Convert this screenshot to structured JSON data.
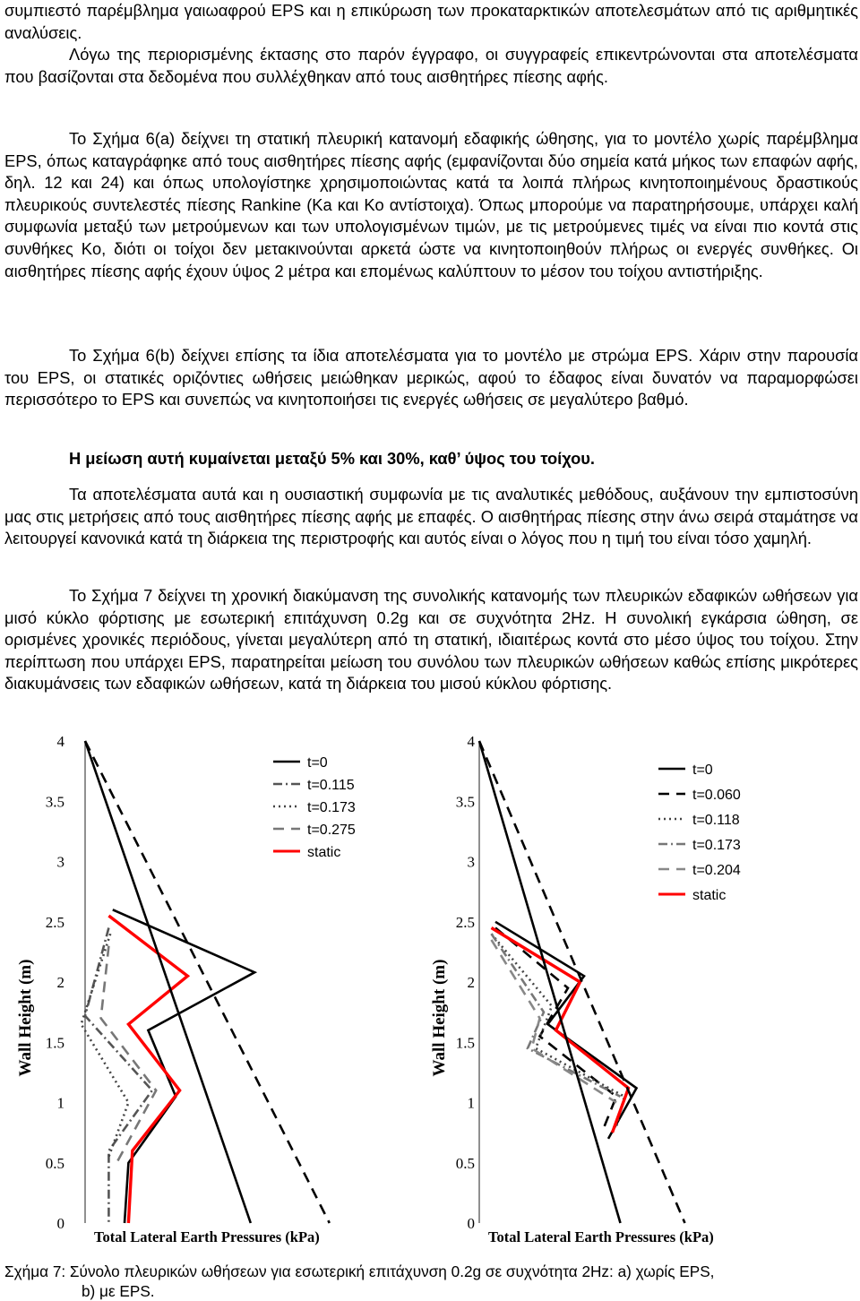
{
  "paragraphs": {
    "p0": "συμπιεστό παρέμβλημα γαιωαφρού EPS και η επικύρωση των προκαταρκτικών αποτελεσμάτων από τις αριθμητικές αναλύσεις.",
    "p1": "Λόγω της περιορισμένης έκτασης στο παρόν έγγραφο, οι συγγραφείς επικεντρώνονται στα αποτελέσματα που βασίζονται στα δεδομένα που συλλέχθηκαν από τους αισθητήρες πίεσης αφής.",
    "p2": "Το Σχήμα 6(a) δείχνει τη στατική πλευρική κατανομή εδαφικής ώθησης, για το μοντέλο χωρίς παρέμβλημα EPS, όπως καταγράφηκε από τους αισθητήρες πίεσης αφής (εμφανίζονται δύο σημεία κατά μήκος των επαφών αφής, δηλ. 12 και 24) και όπως υπολογίστηκε χρησιμοποιώντας κατά τα λοιπά πλήρως κινητοποιημένους δραστικούς πλευρικούς συντελεστές πίεσης Rankine (Ka και Ko αντίστοιχα). Όπως μπορούμε να παρατηρήσουμε, υπάρχει καλή συμφωνία μεταξύ των μετρούμενων και των υπολογισμένων τιμών, με τις μετρούμενες τιμές να είναι πιο κοντά στις συνθήκες Ko, διότι οι τοίχοι δεν μετακινούνται αρκετά ώστε να κινητοποιηθούν πλήρως οι ενεργές συνθήκες. Οι αισθητήρες πίεσης αφής έχουν ύψος 2 μέτρα και επομένως καλύπτουν το μέσον του τοίχου αντιστήριξης.",
    "p3": "Το Σχήμα 6(b) δείχνει επίσης τα ίδια αποτελέσματα για το μοντέλο με στρώμα EPS. Χάριν στην παρουσία του EPS, οι στατικές οριζόντιες ωθήσεις μειώθηκαν μερικώς, αφού το έδαφος είναι δυνατόν να παραμορφώσει περισσότερο το EPS και συνεπώς να κινητοποιήσει τις ενεργές ωθήσεις σε μεγαλύτερο βαθμό.",
    "p4": "Η μείωση αυτή κυμαίνεται μεταξύ 5% και 30%, καθ’ ύψος του τοίχου.",
    "p5": "Τα αποτελέσματα αυτά και η ουσιαστική συμφωνία με τις αναλυτικές μεθόδους, αυξάνουν την εμπιστοσύνη μας στις μετρήσεις από τους αισθητήρες πίεσης αφής με επαφές. Ο αισθητήρας πίεσης στην άνω σειρά σταμάτησε να λειτουργεί κανονικά κατά τη διάρκεια της περιστροφής και αυτός είναι ο λόγος που η τιμή του είναι τόσο χαμηλή.",
    "p6": "Το Σχήμα 7 δείχνει τη χρονική διακύμανση της συνολικής κατανομής των πλευρικών εδαφικών ωθήσεων για μισό κύκλο φόρτισης με εσωτερική επιτάχυνση 0.2g και σε συχνότητα 2Hz. Η συνολική εγκάρσια ώθηση, σε ορισμένες χρονικές περιόδους, γίνεται μεγαλύτερη από τη στατική, ιδιαιτέρως κοντά στο μέσο ύψος του τοίχου. Στην περίπτωση που υπάρχει EPS, παρατηρείται μείωση του συνόλου των πλευρικών ωθήσεων καθώς επίσης μικρότερες διακυμάνσεις των εδαφικών ωθήσεων, κατά τη διάρκεια του μισού κύκλου φόρτισης."
  },
  "chart_data": [
    {
      "type": "line",
      "panel": "a",
      "ylabel": "Wall Height (m)",
      "xlabel": "Total Lateral Earth Pressures (kPa)",
      "ylim": [
        0,
        4
      ],
      "yticks": [
        "0",
        "0.5",
        "1",
        "1.5",
        "2",
        "2.5",
        "3",
        "3.5",
        "4"
      ],
      "legend_position": "top-right",
      "series": [
        {
          "name": "t=0",
          "color": "#000000",
          "style": "solid",
          "points": [
            [
              0.35,
              2.6
            ],
            [
              2.15,
              2.08
            ],
            [
              0.8,
              1.6
            ],
            [
              1.15,
              1.05
            ],
            [
              0.55,
              0.5
            ],
            [
              0.5,
              0.0
            ]
          ]
        },
        {
          "name": "t=0.115",
          "color": "#555555",
          "style": "dash-dot",
          "points": [
            [
              0.3,
              2.45
            ],
            [
              0.0,
              1.72
            ],
            [
              0.85,
              1.1
            ],
            [
              0.3,
              0.6
            ],
            [
              0.3,
              0.0
            ]
          ]
        },
        {
          "name": "t=0.173",
          "color": "#444444",
          "style": "dotted",
          "points": [
            [
              0.32,
              2.4
            ],
            [
              -0.05,
              1.65
            ],
            [
              0.55,
              1.0
            ],
            [
              0.3,
              0.55
            ]
          ]
        },
        {
          "name": "t=0.275",
          "color": "#777777",
          "style": "dash",
          "points": [
            [
              0.3,
              2.3
            ],
            [
              0.2,
              1.7
            ],
            [
              0.9,
              1.1
            ],
            [
              0.4,
              0.5
            ]
          ]
        },
        {
          "name": "static",
          "color": "#ff0000",
          "style": "solid",
          "points": [
            [
              0.3,
              2.55
            ],
            [
              1.3,
              2.05
            ],
            [
              0.55,
              1.65
            ],
            [
              1.2,
              1.1
            ],
            [
              0.6,
              0.6
            ],
            [
              0.55,
              0.0
            ]
          ]
        },
        {
          "name": "",
          "color": "#000000",
          "style": "solid",
          "points": [
            [
              0.0,
              4.0
            ],
            [
              2.1,
              0.0
            ]
          ]
        },
        {
          "name": "",
          "color": "#000000",
          "style": "dash",
          "points": [
            [
              0.0,
              4.0
            ],
            [
              3.1,
              0.0
            ]
          ]
        }
      ]
    },
    {
      "type": "line",
      "panel": "b",
      "ylabel": "Wall Height (m)",
      "xlabel": "Total Lateral Earth Pressures (kPa)",
      "ylim": [
        0,
        4
      ],
      "yticks": [
        "0",
        "0.5",
        "1",
        "1.5",
        "2",
        "2.5",
        "3",
        "3.5",
        "4"
      ],
      "legend_position": "top-right",
      "series": [
        {
          "name": "t=0",
          "color": "#000000",
          "style": "solid",
          "points": [
            [
              0.2,
              2.5
            ],
            [
              1.3,
              2.05
            ],
            [
              0.85,
              1.65
            ],
            [
              1.95,
              1.12
            ],
            [
              1.6,
              0.7
            ]
          ]
        },
        {
          "name": "t=0.060",
          "color": "#000000",
          "style": "dash",
          "points": [
            [
              0.2,
              2.45
            ],
            [
              1.1,
              1.95
            ],
            [
              0.75,
              1.55
            ],
            [
              1.7,
              1.05
            ],
            [
              1.55,
              0.8
            ]
          ]
        },
        {
          "name": "t=0.118",
          "color": "#444444",
          "style": "dotted",
          "points": [
            [
              0.15,
              2.4
            ],
            [
              0.9,
              1.8
            ],
            [
              0.7,
              1.45
            ],
            [
              1.8,
              1.05
            ],
            [
              1.7,
              0.8
            ]
          ]
        },
        {
          "name": "t=0.173",
          "color": "#777777",
          "style": "dash-dot",
          "points": [
            [
              0.15,
              2.4
            ],
            [
              0.8,
              1.75
            ],
            [
              0.6,
              1.45
            ],
            [
              1.75,
              1.05
            ]
          ]
        },
        {
          "name": "t=0.204",
          "color": "#888888",
          "style": "dash",
          "points": [
            [
              0.15,
              2.35
            ],
            [
              0.75,
              1.7
            ],
            [
              0.65,
              1.45
            ],
            [
              1.7,
              1.0
            ]
          ]
        },
        {
          "name": "static",
          "color": "#ff0000",
          "style": "solid",
          "points": [
            [
              0.15,
              2.45
            ],
            [
              1.25,
              2.0
            ],
            [
              0.95,
              1.6
            ],
            [
              1.85,
              1.12
            ],
            [
              1.65,
              0.75
            ]
          ]
        },
        {
          "name": "",
          "color": "#000000",
          "style": "solid",
          "points": [
            [
              0.0,
              4.0
            ],
            [
              1.75,
              0.0
            ]
          ]
        },
        {
          "name": "",
          "color": "#000000",
          "style": "dash",
          "points": [
            [
              0.0,
              4.0
            ],
            [
              2.55,
              0.0
            ]
          ]
        }
      ]
    }
  ],
  "caption": {
    "line1": "Σχήμα 7: Σύνολο πλευρικών ωθήσεων για εσωτερική επιτάχυνση 0.2g σε συχνότητα 2Hz: a) χωρίς EPS,",
    "line2": "b) με EPS."
  }
}
